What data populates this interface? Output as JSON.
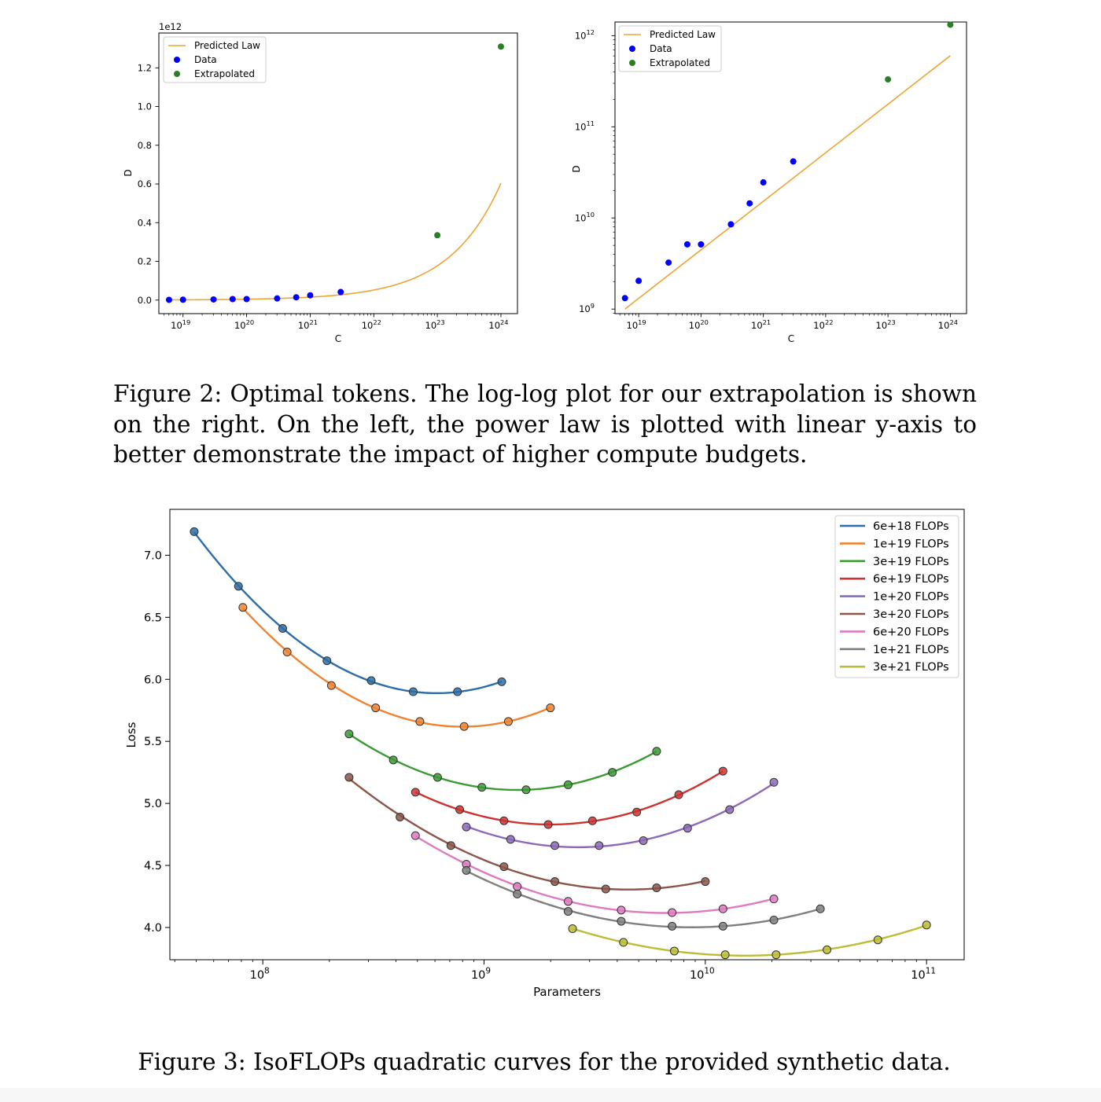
{
  "figure2": {
    "caption": "Figure 2: Optimal tokens. The log-log plot for our extrapolation is shown on the right. On the left, the power law is plotted with linear y-axis to better demonstrate the impact of higher compute budgets."
  },
  "figure3": {
    "caption": "Figure 3: IsoFLOPs quadratic curves for the provided synthetic data."
  },
  "colors": {
    "law": "#eca535",
    "data": "#0000ff",
    "extrapolated": "#2a7f25"
  },
  "chart_data": [
    {
      "type": "scatter",
      "panel": "left",
      "scale": {
        "x": "log",
        "y": "linear"
      },
      "y_offset_label": "1e12",
      "xlabel": "C",
      "ylabel": "D",
      "xlim_exp": [
        18.62,
        24.26
      ],
      "ylim": [
        -0.07,
        1.38
      ],
      "x_ticks_exp": [
        19,
        20,
        21,
        22,
        23,
        24
      ],
      "y_ticks": [
        0.0,
        0.2,
        0.4,
        0.6,
        0.8,
        1.0,
        1.2
      ],
      "y_tick_labels": [
        "0.0",
        "0.2",
        "0.4",
        "0.6",
        "0.8",
        "1.0",
        "1.2"
      ],
      "x_tick_labels": [
        "10",
        "10",
        "10",
        "10",
        "10",
        "10"
      ],
      "x_tick_sup": [
        "19",
        "20",
        "21",
        "22",
        "23",
        "24"
      ],
      "legend": {
        "position": "upper-left",
        "entries": [
          {
            "label": "Predicted Law",
            "kind": "line",
            "color": "#eca535"
          },
          {
            "label": "Data",
            "kind": "marker",
            "color": "#0000ff"
          },
          {
            "label": "Extrapolated",
            "kind": "marker",
            "color": "#2a7f25"
          }
        ]
      },
      "law": {
        "x_exp_range": [
          18.78,
          24.0
        ],
        "slope": 0.5327,
        "log10_D_at_x0": 9.0,
        "x0_exp": 18.78
      },
      "data_points": [
        {
          "x_exp": 18.78,
          "y": 0.0013
        },
        {
          "x_exp": 19.0,
          "y": 0.0021
        },
        {
          "x_exp": 19.48,
          "y": 0.0033
        },
        {
          "x_exp": 19.78,
          "y": 0.0052
        },
        {
          "x_exp": 20.0,
          "y": 0.0052
        },
        {
          "x_exp": 20.48,
          "y": 0.0086
        },
        {
          "x_exp": 20.78,
          "y": 0.0145
        },
        {
          "x_exp": 21.0,
          "y": 0.0245
        },
        {
          "x_exp": 21.48,
          "y": 0.0415
        }
      ],
      "extrapolated_points": [
        {
          "x_exp": 23.0,
          "y": 0.335
        },
        {
          "x_exp": 24.0,
          "y": 1.31
        }
      ]
    },
    {
      "type": "scatter",
      "panel": "right",
      "scale": {
        "x": "log",
        "y": "log"
      },
      "xlabel": "C",
      "ylabel": "D",
      "xlim_exp": [
        18.62,
        24.26
      ],
      "ylim_exp": [
        8.95,
        12.15
      ],
      "x_ticks_exp": [
        19,
        20,
        21,
        22,
        23,
        24
      ],
      "y_ticks_exp": [
        9,
        10,
        11,
        12
      ],
      "x_tick_labels": [
        "10",
        "10",
        "10",
        "10",
        "10",
        "10"
      ],
      "x_tick_sup": [
        "19",
        "20",
        "21",
        "22",
        "23",
        "24"
      ],
      "y_tick_labels": [
        "10",
        "10",
        "10",
        "10"
      ],
      "y_tick_sup": [
        "9",
        "10",
        "11",
        "12"
      ],
      "legend": {
        "position": "upper-left",
        "entries": [
          {
            "label": "Predicted Law",
            "kind": "line",
            "color": "#eca535"
          },
          {
            "label": "Data",
            "kind": "marker",
            "color": "#0000ff"
          },
          {
            "label": "Extrapolated",
            "kind": "marker",
            "color": "#2a7f25"
          }
        ]
      },
      "law": {
        "x_exp_range": [
          18.78,
          24.0
        ],
        "slope": 0.5327,
        "log10_D_at_x0": 9.0,
        "x0_exp": 18.78
      },
      "data_points": [
        {
          "x_exp": 18.78,
          "y_exp": 9.12
        },
        {
          "x_exp": 19.0,
          "y_exp": 9.31
        },
        {
          "x_exp": 19.48,
          "y_exp": 9.51
        },
        {
          "x_exp": 19.78,
          "y_exp": 9.71
        },
        {
          "x_exp": 20.0,
          "y_exp": 9.71
        },
        {
          "x_exp": 20.48,
          "y_exp": 9.93
        },
        {
          "x_exp": 20.78,
          "y_exp": 10.16
        },
        {
          "x_exp": 21.0,
          "y_exp": 10.39
        },
        {
          "x_exp": 21.48,
          "y_exp": 10.62
        }
      ],
      "extrapolated_points": [
        {
          "x_exp": 23.0,
          "y_exp": 11.52
        },
        {
          "x_exp": 24.0,
          "y_exp": 12.12
        }
      ]
    },
    {
      "type": "line",
      "panel": "isoflops",
      "scale": {
        "x": "log",
        "y": "linear"
      },
      "xlabel": "Parameters",
      "ylabel": "Loss",
      "xlim_exp": [
        7.58,
        11.17
      ],
      "ylim": [
        3.74,
        7.37
      ],
      "x_ticks_exp": [
        8,
        9,
        10,
        11
      ],
      "x_tick_labels": [
        "10",
        "10",
        "10",
        "10"
      ],
      "x_tick_sup": [
        "8",
        "9",
        "10",
        "11"
      ],
      "y_ticks": [
        4.0,
        4.5,
        5.0,
        5.5,
        6.0,
        6.5,
        7.0
      ],
      "y_tick_labels": [
        "4.0",
        "4.5",
        "5.0",
        "5.5",
        "6.0",
        "6.5",
        "7.0"
      ],
      "legend": {
        "position": "upper-right"
      },
      "series": [
        {
          "name": "6e+18 FLOPs",
          "color": "#2b6da8",
          "points": [
            [
              7.69,
              7.19
            ],
            [
              7.89,
              6.75
            ],
            [
              8.09,
              6.41
            ],
            [
              8.29,
              6.15
            ],
            [
              8.49,
              5.99
            ],
            [
              8.68,
              5.9
            ],
            [
              8.88,
              5.9
            ],
            [
              9.08,
              5.98
            ]
          ]
        },
        {
          "name": "1e+19 FLOPs",
          "color": "#ef8330",
          "points": [
            [
              7.91,
              6.58
            ],
            [
              8.11,
              6.22
            ],
            [
              8.31,
              5.95
            ],
            [
              8.51,
              5.77
            ],
            [
              8.71,
              5.66
            ],
            [
              8.91,
              5.62
            ],
            [
              9.11,
              5.66
            ],
            [
              9.3,
              5.77
            ]
          ]
        },
        {
          "name": "3e+19 FLOPs",
          "color": "#3a9a34",
          "points": [
            [
              8.39,
              5.56
            ],
            [
              8.59,
              5.35
            ],
            [
              8.79,
              5.21
            ],
            [
              8.99,
              5.13
            ],
            [
              9.19,
              5.11
            ],
            [
              9.38,
              5.15
            ],
            [
              9.58,
              5.25
            ],
            [
              9.78,
              5.42
            ]
          ]
        },
        {
          "name": "6e+19 FLOPs",
          "color": "#cc3330",
          "points": [
            [
              8.69,
              5.09
            ],
            [
              8.89,
              4.95
            ],
            [
              9.09,
              4.86
            ],
            [
              9.29,
              4.83
            ],
            [
              9.49,
              4.86
            ],
            [
              9.69,
              4.93
            ],
            [
              9.88,
              5.07
            ],
            [
              10.08,
              5.26
            ]
          ]
        },
        {
          "name": "1e+20 FLOPs",
          "color": "#8d69b8",
          "points": [
            [
              8.92,
              4.81
            ],
            [
              9.12,
              4.71
            ],
            [
              9.32,
              4.66
            ],
            [
              9.52,
              4.66
            ],
            [
              9.72,
              4.7
            ],
            [
              9.92,
              4.8
            ],
            [
              10.11,
              4.95
            ],
            [
              10.31,
              5.17
            ]
          ]
        },
        {
          "name": "3e+20 FLOPs",
          "color": "#8b5549",
          "points": [
            [
              8.39,
              5.21
            ],
            [
              8.62,
              4.89
            ],
            [
              8.85,
              4.66
            ],
            [
              9.09,
              4.49
            ],
            [
              9.32,
              4.37
            ],
            [
              9.55,
              4.31
            ],
            [
              9.78,
              4.32
            ],
            [
              10.0,
              4.37
            ]
          ]
        },
        {
          "name": "6e+20 FLOPs",
          "color": "#de7ac1",
          "points": [
            [
              8.69,
              4.74
            ],
            [
              8.92,
              4.51
            ],
            [
              9.15,
              4.33
            ],
            [
              9.38,
              4.21
            ],
            [
              9.62,
              4.14
            ],
            [
              9.85,
              4.12
            ],
            [
              10.08,
              4.15
            ],
            [
              10.31,
              4.23
            ]
          ]
        },
        {
          "name": "1e+21 FLOPs",
          "color": "#7f7f7f",
          "points": [
            [
              8.92,
              4.46
            ],
            [
              9.15,
              4.27
            ],
            [
              9.38,
              4.13
            ],
            [
              9.62,
              4.05
            ],
            [
              9.85,
              4.01
            ],
            [
              10.08,
              4.01
            ],
            [
              10.31,
              4.06
            ],
            [
              10.52,
              4.15
            ]
          ]
        },
        {
          "name": "3e+21 FLOPs",
          "color": "#bcbc35",
          "points": [
            [
              9.4,
              3.99
            ],
            [
              9.63,
              3.88
            ],
            [
              9.86,
              3.81
            ],
            [
              10.09,
              3.78
            ],
            [
              10.32,
              3.78
            ],
            [
              10.55,
              3.82
            ],
            [
              10.78,
              3.9
            ],
            [
              11.0,
              4.02
            ]
          ]
        }
      ]
    }
  ]
}
